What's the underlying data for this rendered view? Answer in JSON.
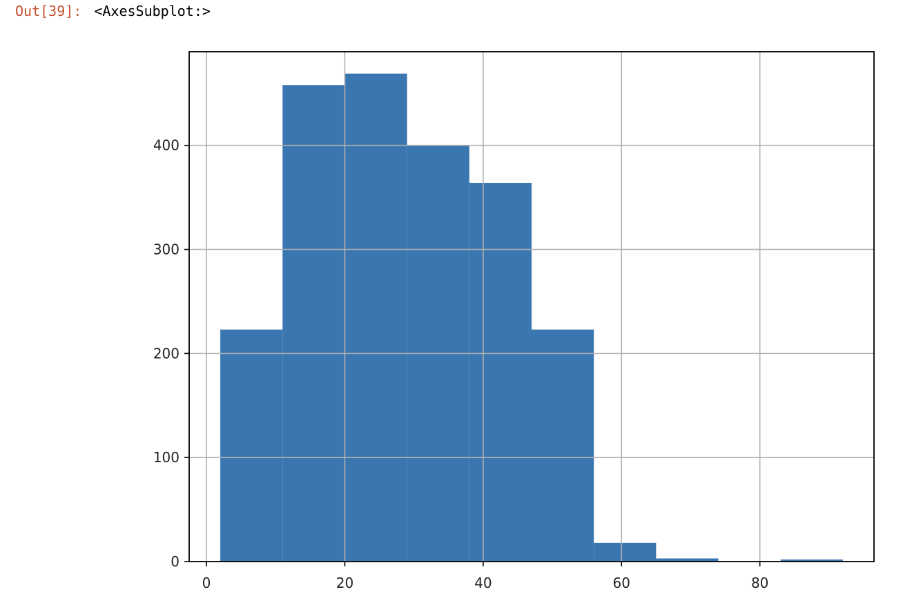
{
  "cell": {
    "prompt": "Out[39]:",
    "output": "<AxesSubplot:>"
  },
  "chart_data": {
    "type": "bar",
    "histogram": true,
    "bin_edges": [
      2,
      11,
      20,
      29,
      38,
      47,
      56,
      65,
      74,
      83,
      92
    ],
    "values": [
      223,
      458,
      469,
      400,
      364,
      223,
      18,
      3,
      0,
      2
    ],
    "title": "",
    "xlabel": "",
    "ylabel": "",
    "xlim": [
      -2.5,
      96.5
    ],
    "ylim": [
      0,
      490
    ],
    "xticks": [
      "0",
      "20",
      "40",
      "60",
      "80"
    ],
    "yticks": [
      "0",
      "100",
      "200",
      "300",
      "400"
    ],
    "grid": true,
    "bar_color": "#3a76af",
    "grid_color": "#b0b0b0",
    "frame_color": "#000000"
  }
}
